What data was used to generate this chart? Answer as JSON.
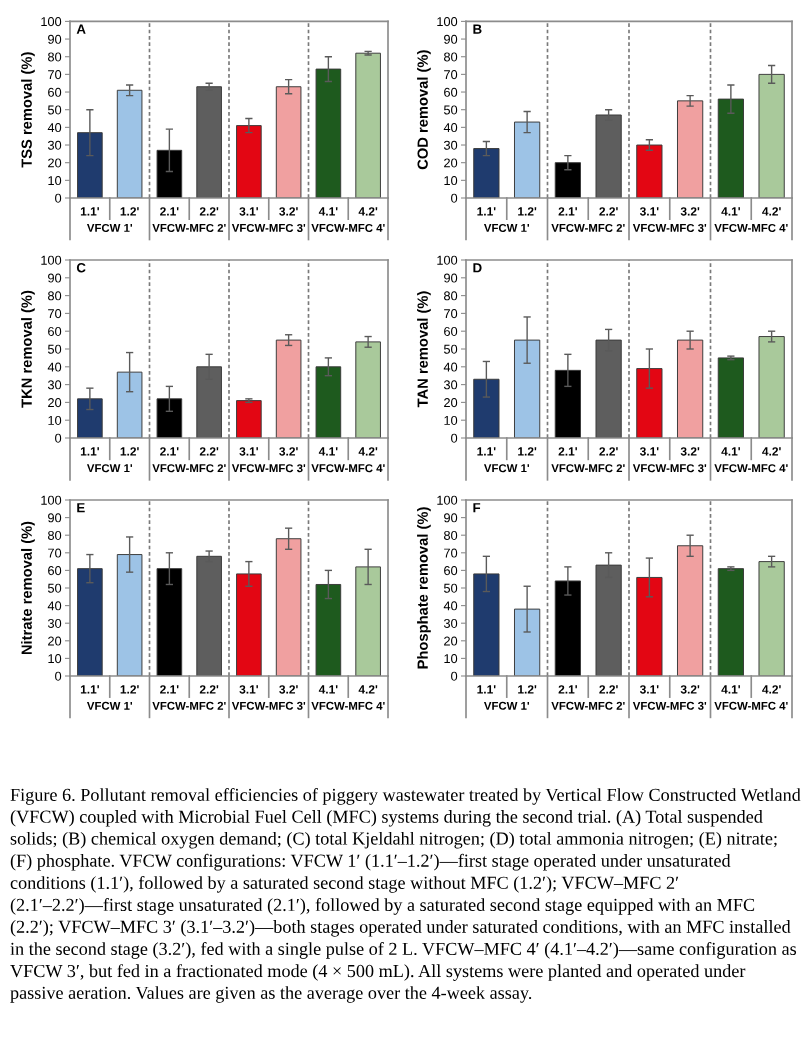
{
  "chart_data": [
    {
      "type": "bar",
      "title": "A",
      "ylabel": "TSS removal (%)",
      "categories": [
        "1.1'",
        "1.2'",
        "2.1'",
        "2.2'",
        "3.1'",
        "3.2'",
        "4.1'",
        "4.2'"
      ],
      "values": [
        37,
        61,
        27,
        63,
        41,
        63,
        73,
        82
      ],
      "errors": [
        13,
        3,
        12,
        2,
        4,
        4,
        7,
        1
      ],
      "colors": [
        "#1f3b6e",
        "#9dc3e6",
        "#000000",
        "#5e5e5e",
        "#e30613",
        "#f0a0a0",
        "#1e5a1e",
        "#a9c99b"
      ],
      "ylim": [
        0,
        100
      ],
      "yticks": [
        0,
        10,
        20,
        30,
        40,
        50,
        60,
        70,
        80,
        90,
        100
      ],
      "annotations": [
        "VFCW 1'",
        "VFCW-MFC 2'",
        "VFCW-MFC 3'",
        "VFCW-MFC 4'"
      ]
    },
    {
      "type": "bar",
      "title": "B",
      "ylabel": "COD removal (%)",
      "categories": [
        "1.1'",
        "1.2'",
        "2.1'",
        "2.2'",
        "3.1'",
        "3.2'",
        "4.1'",
        "4.2'"
      ],
      "values": [
        28,
        43,
        20,
        47,
        30,
        55,
        56,
        70
      ],
      "errors": [
        4,
        6,
        4,
        3,
        3,
        3,
        8,
        5
      ],
      "colors": [
        "#1f3b6e",
        "#9dc3e6",
        "#000000",
        "#5e5e5e",
        "#e30613",
        "#f0a0a0",
        "#1e5a1e",
        "#a9c99b"
      ],
      "ylim": [
        0,
        100
      ],
      "yticks": [
        0,
        10,
        20,
        30,
        40,
        50,
        60,
        70,
        80,
        90,
        100
      ],
      "annotations": [
        "VFCW 1'",
        "VFCW-MFC 2'",
        "VFCW-MFC 3'",
        "VFCW-MFC 4'"
      ]
    },
    {
      "type": "bar",
      "title": "C",
      "ylabel": "TKN removal (%)",
      "categories": [
        "1.1'",
        "1.2'",
        "2.1'",
        "2.2'",
        "3.1'",
        "3.2'",
        "4.1'",
        "4.2'"
      ],
      "values": [
        22,
        37,
        22,
        40,
        21,
        55,
        40,
        54
      ],
      "errors": [
        6,
        11,
        7,
        7,
        1,
        3,
        5,
        3
      ],
      "colors": [
        "#1f3b6e",
        "#9dc3e6",
        "#000000",
        "#5e5e5e",
        "#e30613",
        "#f0a0a0",
        "#1e5a1e",
        "#a9c99b"
      ],
      "ylim": [
        0,
        100
      ],
      "yticks": [
        0,
        10,
        20,
        30,
        40,
        50,
        60,
        70,
        80,
        90,
        100
      ],
      "annotations": [
        "VFCW 1'",
        "VFCW-MFC 2'",
        "VFCW-MFC 3'",
        "VFCW-MFC 4'"
      ]
    },
    {
      "type": "bar",
      "title": "D",
      "ylabel": "TAN removal (%)",
      "categories": [
        "1.1'",
        "1.2'",
        "2.1'",
        "2.2'",
        "3.1'",
        "3.2'",
        "4.1'",
        "4.2'"
      ],
      "values": [
        33,
        55,
        38,
        55,
        39,
        55,
        45,
        57
      ],
      "errors": [
        10,
        13,
        9,
        6,
        11,
        5,
        1,
        3
      ],
      "colors": [
        "#1f3b6e",
        "#9dc3e6",
        "#000000",
        "#5e5e5e",
        "#e30613",
        "#f0a0a0",
        "#1e5a1e",
        "#a9c99b"
      ],
      "ylim": [
        0,
        100
      ],
      "yticks": [
        0,
        10,
        20,
        30,
        40,
        50,
        60,
        70,
        80,
        90,
        100
      ],
      "annotations": [
        "VFCW 1'",
        "VFCW-MFC 2'",
        "VFCW-MFC 3'",
        "VFCW-MFC 4'"
      ]
    },
    {
      "type": "bar",
      "title": "E",
      "ylabel": "Nitrate removal (%)",
      "categories": [
        "1.1'",
        "1.2'",
        "2.1'",
        "2.2'",
        "3.1'",
        "3.2'",
        "4.1'",
        "4.2'"
      ],
      "values": [
        61,
        69,
        61,
        68,
        58,
        78,
        52,
        62
      ],
      "errors": [
        8,
        10,
        9,
        3,
        7,
        6,
        8,
        10
      ],
      "colors": [
        "#1f3b6e",
        "#9dc3e6",
        "#000000",
        "#5e5e5e",
        "#e30613",
        "#f0a0a0",
        "#1e5a1e",
        "#a9c99b"
      ],
      "ylim": [
        0,
        100
      ],
      "yticks": [
        0,
        10,
        20,
        30,
        40,
        50,
        60,
        70,
        80,
        90,
        100
      ],
      "annotations": [
        "VFCW 1'",
        "VFCW-MFC 2'",
        "VFCW-MFC 3'",
        "VFCW-MFC 4'"
      ]
    },
    {
      "type": "bar",
      "title": "F",
      "ylabel": "Phosphate removal (%)",
      "categories": [
        "1.1'",
        "1.2'",
        "2.1'",
        "2.2'",
        "3.1'",
        "3.2'",
        "4.1'",
        "4.2'"
      ],
      "values": [
        58,
        38,
        54,
        63,
        56,
        74,
        61,
        65
      ],
      "errors": [
        10,
        13,
        8,
        7,
        11,
        6,
        1,
        3
      ],
      "colors": [
        "#1f3b6e",
        "#9dc3e6",
        "#000000",
        "#5e5e5e",
        "#e30613",
        "#f0a0a0",
        "#1e5a1e",
        "#a9c99b"
      ],
      "ylim": [
        0,
        100
      ],
      "yticks": [
        0,
        10,
        20,
        30,
        40,
        50,
        60,
        70,
        80,
        90,
        100
      ],
      "annotations": [
        "VFCW 1'",
        "VFCW-MFC 2'",
        "VFCW-MFC 3'",
        "VFCW-MFC 4'"
      ]
    },
    {
      "type": "other",
      "annotations": [
        "Figure 6. Pollutant removal efficiencies of piggery wastewater treated by Vertical Flow Constructed Wetland (VFCW) coupled with Microbial Fuel Cell (MFC) systems during the second trial. (A) Total suspended solids; (B) chemical oxygen demand; (C) total Kjeldahl nitrogen; (D) total ammonia nitrogen; (E) nitrate; (F) phosphate. VFCW configurations: VFCW 1′ (1.1′–1.2′)—first stage operated under unsaturated conditions (1.1′), followed by a saturated second stage without MFC (1.2′); VFCW–MFC 2′ (2.1′–2.2′)—first stage unsaturated (2.1′), followed by a saturated second stage equipped with an MFC (2.2′); VFCW–MFC 3′ (3.1′–3.2′)—both stages operated under saturated conditions, with an MFC installed in the second stage (3.2′), fed with a single pulse of 2 L. VFCW–MFC 4′ (4.1′–4.2′)—same configuration as VFCW 3′, but fed in a fractionated mode (4 × 500 mL). All systems were planted and operated under passive aeration. Values are given as the average over the 4-week assay."
      ]
    }
  ]
}
